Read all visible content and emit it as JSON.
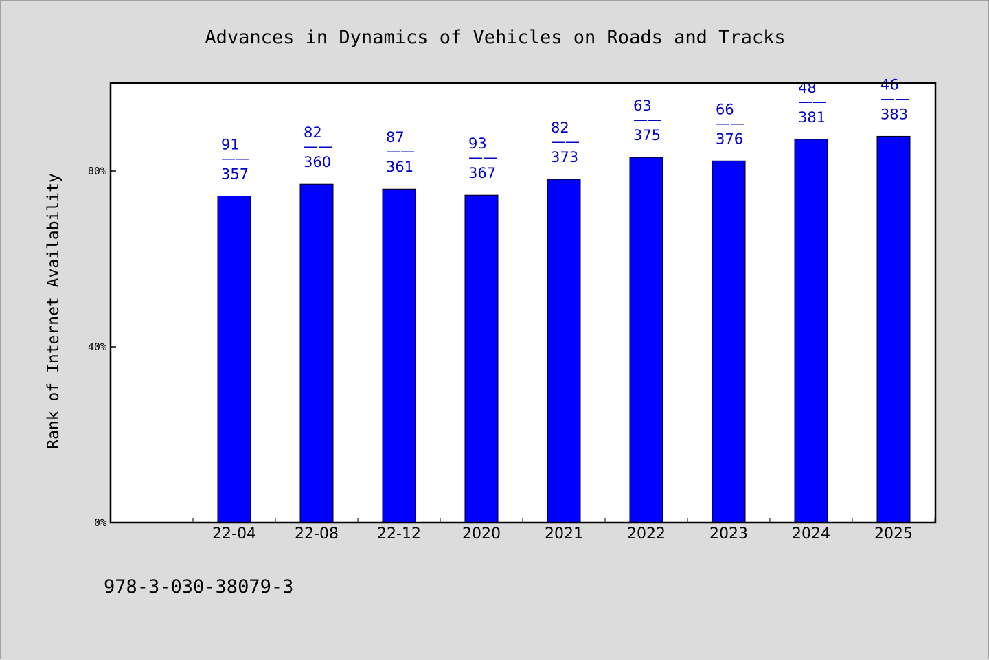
{
  "chart_data": {
    "type": "bar",
    "title": "Advances in Dynamics of Vehicles on Roads and Tracks",
    "ylabel": "Rank of Internet Availability",
    "xlabel": "",
    "categories": [
      "22-04",
      "22-08",
      "22-12",
      "2020",
      "2021",
      "2022",
      "2023",
      "2024",
      "2025"
    ],
    "values": [
      74.3,
      77.0,
      75.9,
      74.5,
      78.1,
      83.1,
      82.3,
      87.2,
      87.9
    ],
    "ylim": [
      0,
      100
    ],
    "yticks": [
      0,
      40,
      80
    ],
    "ytick_labels": [
      "0%",
      "40%",
      "80%"
    ],
    "data_labels": [
      {
        "top": "91",
        "sep": "——",
        "bottom": "357"
      },
      {
        "top": "82",
        "sep": "——",
        "bottom": "360"
      },
      {
        "top": "87",
        "sep": "——",
        "bottom": "361"
      },
      {
        "top": "93",
        "sep": "——",
        "bottom": "367"
      },
      {
        "top": "82",
        "sep": "——",
        "bottom": "373"
      },
      {
        "top": "63",
        "sep": "——",
        "bottom": "375"
      },
      {
        "top": "66",
        "sep": "——",
        "bottom": "376"
      },
      {
        "top": "48",
        "sep": "——",
        "bottom": "381"
      },
      {
        "top": "46",
        "sep": "——",
        "bottom": "383"
      }
    ],
    "bar_color": "#0000ff",
    "label_color": "#0000cc",
    "grid": false,
    "legend": "none"
  },
  "footer": {
    "isbn": "978-3-030-38079-3"
  }
}
